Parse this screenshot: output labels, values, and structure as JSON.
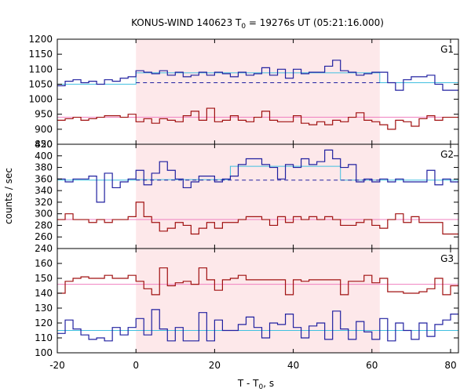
{
  "title": {
    "main": "KONUS-WIND 140623 T",
    "sub": "0",
    "rest": " = 19276s UT (05:21:16.000)"
  },
  "xlabel": {
    "main": "T - T",
    "sub": "0",
    "rest": ", s"
  },
  "ylabel": "counts / sec",
  "colors": {
    "hist_blue": "#2020a0",
    "hist_red": "#a01010",
    "fit_blue": "#40c0e0",
    "fit_red": "#f080c0",
    "highlight": "#fde8ea"
  },
  "chart_data": {
    "type": "line",
    "x_range": [
      -20,
      82
    ],
    "x_ticks": [
      -20,
      0,
      20,
      40,
      60,
      80
    ],
    "highlight_interval": [
      0,
      62
    ],
    "step_edges": [
      -20,
      -18,
      -16,
      -14,
      -12,
      -10,
      -8,
      -6,
      -4,
      -2,
      0,
      2,
      4,
      6,
      8,
      10,
      12,
      14,
      16,
      18,
      20,
      22,
      24,
      26,
      28,
      30,
      32,
      34,
      36,
      38,
      40,
      42,
      44,
      46,
      48,
      50,
      52,
      54,
      56,
      58,
      60,
      62,
      64,
      66,
      68,
      70,
      72,
      74,
      76,
      78,
      80,
      82
    ],
    "panels": [
      {
        "label": "G1",
        "ylim": [
          850,
          1200
        ],
        "yticks": [
          850,
          900,
          950,
          1000,
          1050,
          1100,
          1150,
          1200
        ],
        "series": [
          {
            "color": "blue",
            "values": [
              1045,
              1060,
              1065,
              1055,
              1060,
              1050,
              1065,
              1060,
              1070,
              1075,
              1095,
              1090,
              1085,
              1095,
              1080,
              1090,
              1075,
              1080,
              1090,
              1080,
              1090,
              1085,
              1075,
              1090,
              1080,
              1085,
              1105,
              1080,
              1100,
              1070,
              1100,
              1085,
              1090,
              1090,
              1110,
              1130,
              1095,
              1090,
              1080,
              1085,
              1090,
              1090,
              1055,
              1030,
              1065,
              1075,
              1075,
              1080,
              1050,
              1030,
              1030
            ],
            "background": 1055,
            "fit": [
              [
                -20,
                1050
              ],
              [
                0,
                1050
              ],
              [
                0,
                1088
              ],
              [
                62,
                1088
              ],
              [
                62,
                1055
              ],
              [
                82,
                1055
              ]
            ]
          },
          {
            "color": "red",
            "values": [
              930,
              935,
              940,
              930,
              935,
              940,
              945,
              945,
              940,
              950,
              925,
              935,
              920,
              935,
              930,
              925,
              945,
              960,
              930,
              970,
              925,
              930,
              945,
              930,
              925,
              940,
              960,
              930,
              925,
              925,
              945,
              920,
              915,
              925,
              915,
              930,
              925,
              940,
              955,
              930,
              925,
              915,
              900,
              930,
              925,
              910,
              935,
              945,
              930,
              940,
              940
            ],
            "fit": [
              [
                -20,
                940
              ],
              [
                82,
                940
              ]
            ]
          }
        ]
      },
      {
        "label": "G2",
        "ylim": [
          240,
          420
        ],
        "yticks": [
          240,
          260,
          280,
          300,
          320,
          340,
          360,
          380,
          400,
          420
        ],
        "series": [
          {
            "color": "blue",
            "values": [
              360,
              355,
              360,
              360,
              365,
              320,
              370,
              345,
              355,
              360,
              375,
              350,
              370,
              390,
              375,
              360,
              345,
              355,
              365,
              365,
              355,
              360,
              365,
              385,
              395,
              395,
              385,
              380,
              360,
              385,
              380,
              395,
              385,
              390,
              410,
              395,
              380,
              385,
              355,
              360,
              355,
              360,
              355,
              360,
              355,
              355,
              355,
              375,
              350,
              360,
              355
            ],
            "background": 358,
            "fit": [
              [
                -20,
                358
              ],
              [
                0,
                358
              ],
              [
                0,
                359
              ],
              [
                24,
                359
              ],
              [
                24,
                382
              ],
              [
                52,
                382
              ],
              [
                52,
                358
              ],
              [
                82,
                358
              ]
            ]
          },
          {
            "color": "red",
            "values": [
              290,
              300,
              290,
              290,
              285,
              290,
              285,
              290,
              290,
              295,
              320,
              295,
              285,
              270,
              275,
              285,
              280,
              265,
              275,
              285,
              275,
              285,
              285,
              290,
              295,
              295,
              290,
              280,
              295,
              285,
              295,
              290,
              295,
              290,
              295,
              290,
              280,
              280,
              285,
              290,
              280,
              275,
              290,
              300,
              285,
              295,
              285,
              285,
              285,
              265,
              265
            ],
            "fit": [
              [
                -20,
                290
              ],
              [
                82,
                290
              ]
            ]
          }
        ]
      },
      {
        "label": "G3",
        "ylim": [
          100,
          170
        ],
        "yticks": [
          100,
          110,
          120,
          130,
          140,
          150,
          160
        ],
        "series": [
          {
            "color": "red",
            "values": [
              140,
              148,
              150,
              151,
              150,
              150,
              152,
              150,
              150,
              152,
              148,
              143,
              139,
              157,
              145,
              147,
              148,
              146,
              157,
              149,
              142,
              149,
              150,
              152,
              149,
              149,
              149,
              149,
              149,
              139,
              149,
              148,
              149,
              149,
              149,
              149,
              139,
              148,
              148,
              152,
              147,
              150,
              141,
              141,
              140,
              140,
              141,
              143,
              150,
              139,
              145
            ],
            "fit": [
              [
                -20,
                146
              ],
              [
                82,
                146
              ]
            ]
          },
          {
            "color": "blue",
            "values": [
              113,
              122,
              116,
              112,
              109,
              110,
              108,
              117,
              112,
              117,
              123,
              112,
              129,
              116,
              108,
              117,
              108,
              108,
              127,
              108,
              122,
              115,
              115,
              119,
              124,
              117,
              110,
              120,
              119,
              126,
              117,
              110,
              118,
              120,
              109,
              128,
              116,
              109,
              121,
              114,
              109,
              123,
              108,
              120,
              115,
              109,
              120,
              111,
              119,
              122,
              126
            ],
            "fit": [
              [
                -20,
                115
              ],
              [
                82,
                115
              ]
            ]
          }
        ]
      }
    ]
  }
}
